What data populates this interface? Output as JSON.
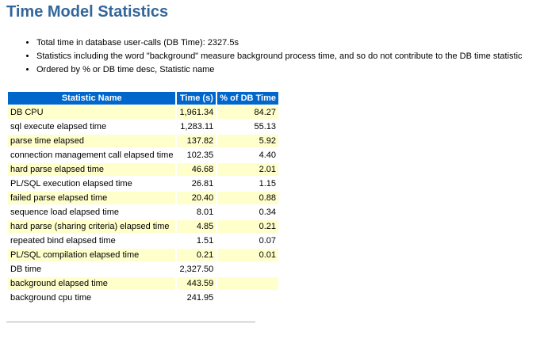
{
  "header": {
    "title": "Time Model Statistics"
  },
  "bullets": [
    "Total time in database user-calls (DB Time): 2327.5s",
    "Statistics including the word \"background\" measure background process time, and so do not contribute to the DB time statistic",
    "Ordered by % or DB time desc, Statistic name"
  ],
  "table": {
    "columns": [
      "Statistic Name",
      "Time (s)",
      "% of DB Time"
    ],
    "rows": [
      [
        "DB CPU",
        "1,961.34",
        "84.27"
      ],
      [
        "sql execute elapsed time",
        "1,283.11",
        "55.13"
      ],
      [
        "parse time elapsed",
        "137.82",
        "5.92"
      ],
      [
        "connection management call elapsed time",
        "102.35",
        "4.40"
      ],
      [
        "hard parse elapsed time",
        "46.68",
        "2.01"
      ],
      [
        "PL/SQL execution elapsed time",
        "26.81",
        "1.15"
      ],
      [
        "failed parse elapsed time",
        "20.40",
        "0.88"
      ],
      [
        "sequence load elapsed time",
        "8.01",
        "0.34"
      ],
      [
        "hard parse (sharing criteria) elapsed time",
        "4.85",
        "0.21"
      ],
      [
        "repeated bind elapsed time",
        "1.51",
        "0.07"
      ],
      [
        "PL/SQL compilation elapsed time",
        "0.21",
        "0.01"
      ],
      [
        "DB time",
        "2,327.50"
      ],
      [
        "background elapsed time",
        "443.59"
      ],
      [
        "background cpu time",
        "241.95"
      ]
    ]
  }
}
